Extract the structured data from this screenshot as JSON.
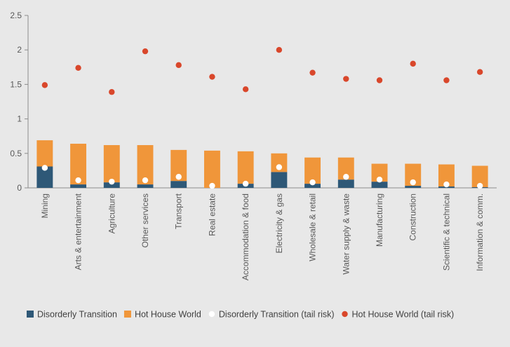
{
  "chart_data": {
    "type": "bar",
    "categories": [
      "Mining",
      "Arts & entertainment",
      "Agriculture",
      "Other services",
      "Transport",
      "Real estate",
      "Accommodation & food",
      "Electricity & gas",
      "Wholesale & retail",
      "Water supply & waste",
      "Manufacturing",
      "Construction",
      "Scientific & technical",
      "Information & comm."
    ],
    "series": [
      {
        "name": "Disorderly Transition",
        "kind": "bar",
        "stacked": true,
        "color": "#2e5877",
        "values": [
          0.31,
          0.05,
          0.08,
          0.05,
          0.1,
          0.0,
          0.06,
          0.23,
          0.06,
          0.12,
          0.09,
          0.03,
          0.02,
          0.01
        ]
      },
      {
        "name": "Hot House World",
        "kind": "bar",
        "stacked": true,
        "color": "#f0963a",
        "values": [
          0.38,
          0.59,
          0.54,
          0.57,
          0.45,
          0.54,
          0.47,
          0.27,
          0.38,
          0.32,
          0.26,
          0.32,
          0.32,
          0.31
        ]
      },
      {
        "name": "Disorderly Transition (tail risk)",
        "kind": "scatter",
        "color": "#ffffff",
        "values": [
          0.29,
          0.11,
          0.09,
          0.11,
          0.16,
          0.03,
          0.06,
          0.3,
          0.08,
          0.16,
          0.12,
          0.08,
          0.05,
          0.03
        ]
      },
      {
        "name": "Hot House World (tail risk)",
        "kind": "scatter",
        "color": "#d9472b",
        "values": [
          1.49,
          1.74,
          1.39,
          1.98,
          1.78,
          1.61,
          1.43,
          2.0,
          1.67,
          1.58,
          1.56,
          1.8,
          1.56,
          1.68
        ]
      }
    ],
    "ylim": [
      0,
      2.5
    ],
    "yticks": [
      "0",
      "0.5",
      "1",
      "1.5",
      "2",
      "2.5"
    ],
    "grid": false,
    "legend": "bottom"
  }
}
